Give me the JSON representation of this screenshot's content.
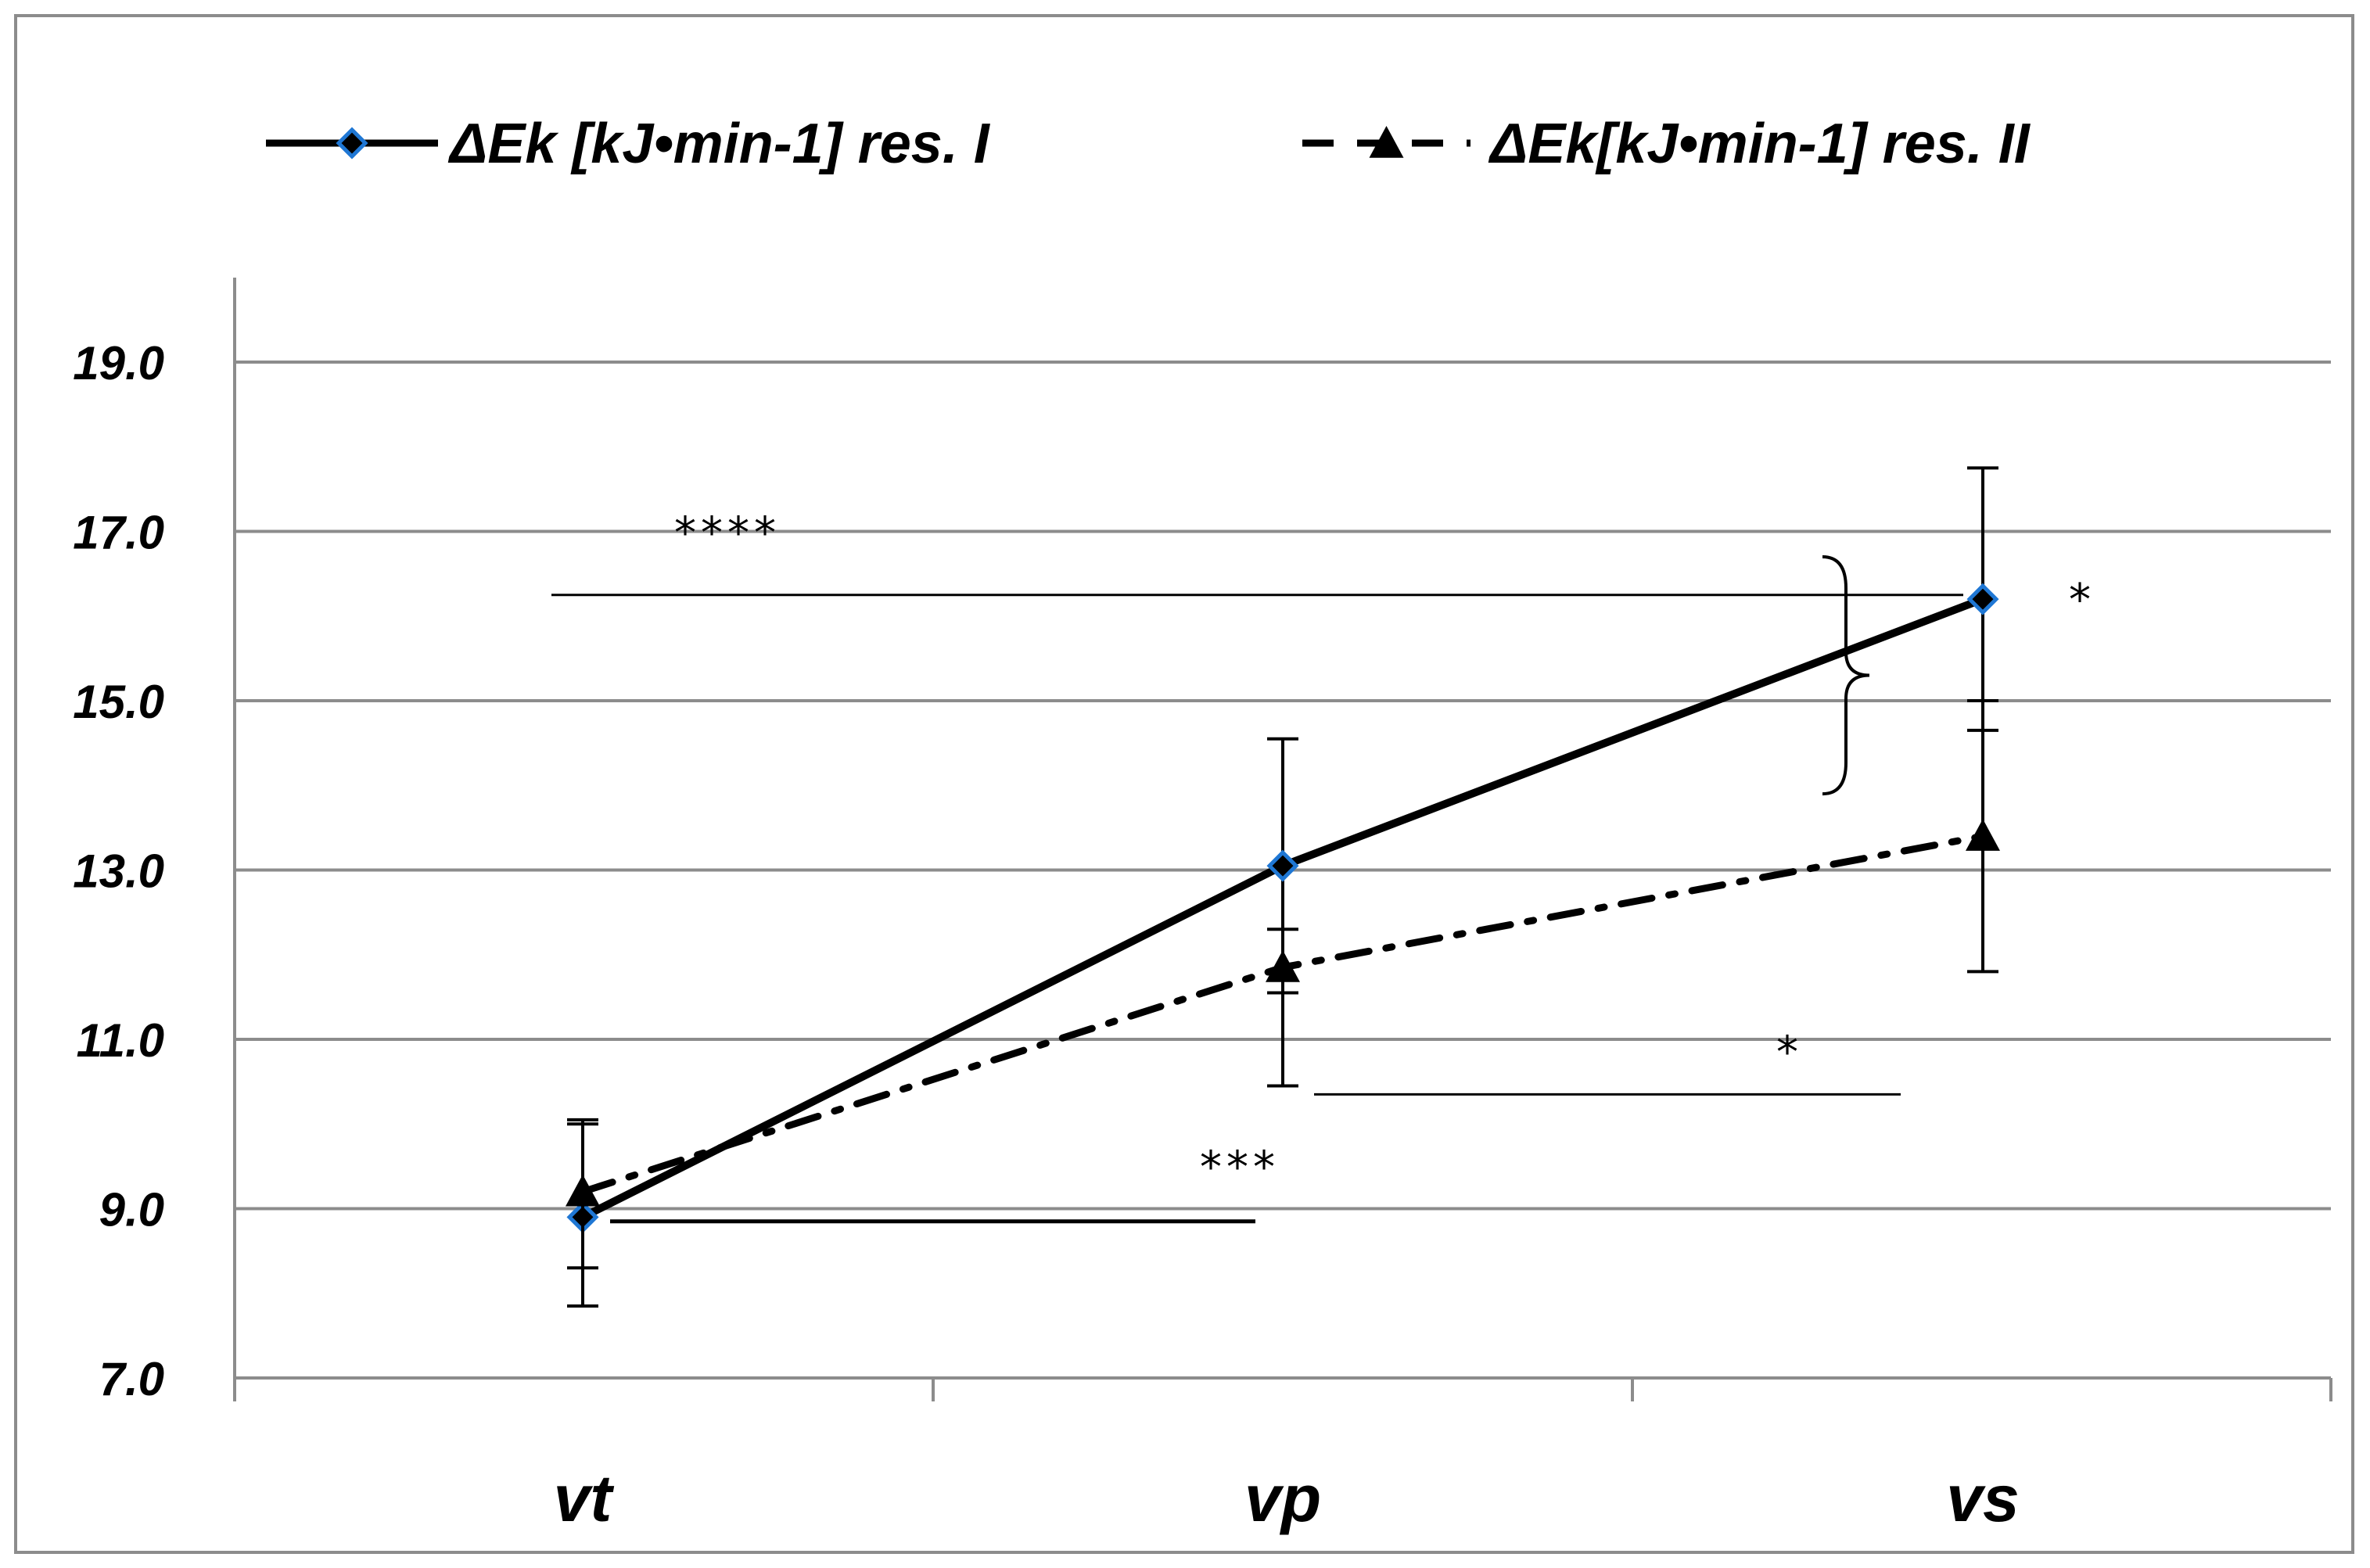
{
  "chart_data": {
    "type": "line",
    "categories": [
      "vt",
      "vp",
      "vs"
    ],
    "ylim": [
      7.0,
      19.0
    ],
    "yticks": [
      "7.0",
      "9.0",
      "11.0",
      "13.0",
      "15.0",
      "17.0",
      "19.0"
    ],
    "grid": true,
    "legend_position": "top",
    "series": [
      {
        "name": "ΔEk [kJ•min-1] res. I",
        "values": [
          8.9,
          13.05,
          16.2
        ],
        "error": [
          [
            7.85,
            10.05
          ],
          [
            11.55,
            14.55
          ],
          [
            14.65,
            17.75
          ]
        ],
        "line_style": "solid",
        "marker": "diamond",
        "color": "#000000",
        "marker_outline": "#1f77d4"
      },
      {
        "name": "ΔEk[kJ•min-1] res. II",
        "values": [
          9.2,
          11.85,
          13.4
        ],
        "error": [
          [
            8.3,
            10.0
          ],
          [
            10.45,
            12.3
          ],
          [
            11.8,
            15.0
          ]
        ],
        "line_style": "dash-dot",
        "marker": "triangle",
        "color": "#000000"
      }
    ],
    "annotations": [
      {
        "text": "****",
        "from": "vt",
        "to": "vs",
        "y": 16.25
      },
      {
        "text": "***",
        "from": "vt",
        "to": "vp",
        "y": 8.85
      },
      {
        "text": "*",
        "from": "vp",
        "to": "vs",
        "y": 10.35
      },
      {
        "text": "*",
        "at": "vs",
        "type": "brace",
        "y_from": 13.9,
        "y_to": 16.7
      }
    ]
  }
}
